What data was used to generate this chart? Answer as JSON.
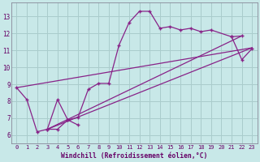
{
  "xlabel": "Windchill (Refroidissement éolien,°C)",
  "background_color": "#c8e8e8",
  "grid_color": "#aacccc",
  "line_color": "#882288",
  "xlim": [
    -0.5,
    23.5
  ],
  "ylim": [
    5.5,
    13.8
  ],
  "xticks": [
    0,
    1,
    2,
    3,
    4,
    5,
    6,
    7,
    8,
    9,
    10,
    11,
    12,
    13,
    14,
    15,
    16,
    17,
    18,
    19,
    20,
    21,
    22,
    23
  ],
  "yticks": [
    6,
    7,
    8,
    9,
    10,
    11,
    12,
    13
  ],
  "main_line": {
    "x": [
      0,
      1,
      2,
      3,
      4,
      5,
      6,
      7,
      8,
      9,
      10,
      11,
      12,
      13,
      14,
      15,
      16,
      17,
      18,
      19,
      21,
      22
    ],
    "y": [
      8.8,
      8.1,
      6.2,
      6.35,
      8.1,
      6.9,
      7.05,
      8.7,
      9.05,
      9.05,
      11.3,
      12.65,
      13.3,
      13.3,
      12.3,
      12.4,
      12.2,
      12.3,
      12.1,
      12.2,
      11.8,
      11.85
    ]
  },
  "short_zigzag": {
    "x": [
      3,
      4,
      5,
      6
    ],
    "y": [
      6.35,
      6.35,
      6.9,
      6.6
    ]
  },
  "trend_lines": [
    {
      "x": [
        0,
        23
      ],
      "y": [
        8.8,
        11.15
      ]
    },
    {
      "x": [
        3,
        22
      ],
      "y": [
        6.35,
        11.85
      ]
    },
    {
      "x": [
        3,
        23
      ],
      "y": [
        6.35,
        11.15
      ]
    }
  ],
  "right_cluster": {
    "x": [
      21,
      22,
      23
    ],
    "y": [
      11.8,
      10.45,
      11.1
    ]
  }
}
